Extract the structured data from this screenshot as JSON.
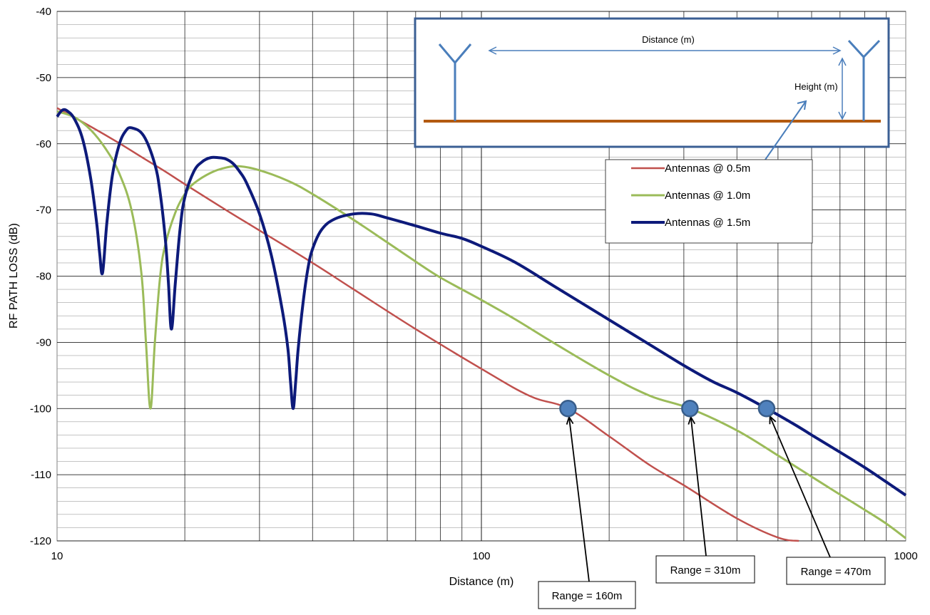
{
  "chart_data": {
    "type": "line",
    "xlabel": "Distance (m)",
    "ylabel": "RF PATH LOSS (dB)",
    "xscale": "log",
    "xlim": [
      10,
      1000
    ],
    "ylim": [
      -120,
      -40
    ],
    "xticks": [
      10,
      100,
      1000
    ],
    "xtick_labels": [
      "10",
      "100",
      "1000"
    ],
    "yticks": [
      -120,
      -110,
      -100,
      -90,
      -80,
      -70,
      -60,
      -50,
      -40
    ],
    "ytick_labels": [
      "-120",
      "-110",
      "-100",
      "-90",
      "-80",
      "-70",
      "-60",
      "-50",
      "-40"
    ],
    "grid": true,
    "legend_position": "right",
    "series": [
      {
        "name": "Antennas @ 0.5m",
        "color": "#c0504d",
        "x": [
          10,
          12,
          14,
          16,
          18,
          20,
          25,
          30,
          40,
          50,
          70,
          100,
          130,
          160,
          200,
          250,
          300,
          400,
          500,
          560
        ],
        "y": [
          -54.6,
          -57.4,
          -59.9,
          -62.2,
          -64.2,
          -66.1,
          -70,
          -73.1,
          -78,
          -82,
          -88,
          -94,
          -98.1,
          -100,
          -104.2,
          -108.6,
          -111.6,
          -116.6,
          -119.5,
          -120
        ]
      },
      {
        "name": "Antennas @ 1.0m",
        "color": "#9bbb59",
        "x": [
          10,
          11,
          12,
          13,
          14,
          15,
          15.8,
          16.2,
          16.6,
          17,
          17.5,
          18,
          19,
          20,
          21,
          23,
          25,
          27,
          30,
          35,
          40,
          50,
          60,
          70,
          80,
          100,
          120,
          150,
          200,
          250,
          310,
          400,
          500,
          600,
          700,
          800,
          900,
          1000
        ],
        "y": [
          -55.1,
          -56,
          -57.9,
          -60.7,
          -64.4,
          -70.2,
          -79.5,
          -90,
          -100,
          -90,
          -80,
          -75.2,
          -70.4,
          -67.6,
          -66,
          -64.4,
          -63.6,
          -63.4,
          -64,
          -65.6,
          -67.6,
          -71.5,
          -74.9,
          -77.8,
          -80.2,
          -83.6,
          -86.5,
          -90.3,
          -95,
          -98.1,
          -100,
          -103.3,
          -107.1,
          -110.3,
          -113,
          -115.3,
          -117.4,
          -119.6
        ]
      },
      {
        "name": "Antennas @ 1.5m",
        "color": "#0d1a7a",
        "x": [
          10,
          10.3,
          10.6,
          11,
          11.5,
          12,
          12.4,
          12.6,
          12.8,
          13.1,
          13.5,
          14,
          14.5,
          15,
          16,
          17,
          17.5,
          18,
          18.3,
          18.6,
          19,
          19.5,
          20,
          21,
          22,
          23,
          24,
          25,
          26,
          27,
          28,
          30,
          32,
          34,
          35,
          35.5,
          36,
          36.5,
          37,
          38,
          39,
          40,
          42,
          45,
          50,
          55,
          60,
          70,
          80,
          90,
          100,
          120,
          150,
          200,
          250,
          300,
          350,
          400,
          470,
          550,
          600,
          700,
          800,
          900,
          1000
        ],
        "y": [
          -55.9,
          -54.9,
          -55.1,
          -56.3,
          -59.4,
          -65.2,
          -72,
          -76.5,
          -79.5,
          -72,
          -64.8,
          -60.2,
          -58.1,
          -57.6,
          -58.8,
          -63.1,
          -67.5,
          -74.5,
          -81,
          -88,
          -81,
          -72.8,
          -68.1,
          -64.2,
          -62.7,
          -62.1,
          -62.1,
          -62.3,
          -63,
          -64.3,
          -66,
          -70.6,
          -76.9,
          -85.4,
          -91,
          -96,
          -100,
          -96,
          -91,
          -84,
          -78.9,
          -75.9,
          -73,
          -71.4,
          -70.6,
          -70.6,
          -71.2,
          -72.4,
          -73.5,
          -74.3,
          -75.5,
          -77.9,
          -81.7,
          -86.6,
          -90.4,
          -93.5,
          -95.9,
          -97.6,
          -100,
          -102.5,
          -104,
          -106.6,
          -108.9,
          -111.1,
          -113.1
        ]
      }
    ],
    "markers": [
      {
        "x": 160,
        "y": -100,
        "label": "Range = 160m"
      },
      {
        "x": 310,
        "y": -100,
        "label": "Range = 310m"
      },
      {
        "x": 470,
        "y": -100,
        "label": "Range = 470m"
      }
    ],
    "inset": {
      "distance_label": "Distance (m)",
      "height_label": "Height (m)"
    }
  }
}
